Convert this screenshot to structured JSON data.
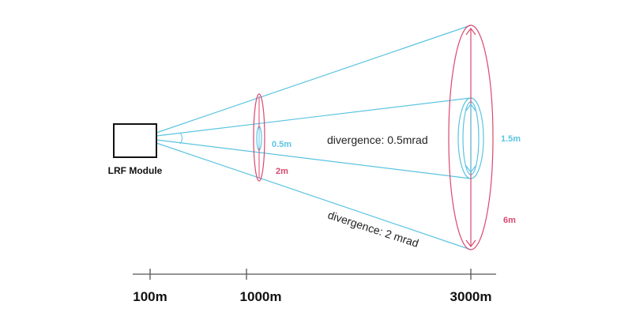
{
  "colors": {
    "narrow_beam": "#5bc4e0",
    "wide_beam": "#d9486f",
    "ink": "#111111"
  },
  "module": {
    "label": "LRF Module"
  },
  "beams": {
    "narrow": {
      "divergence_label": "divergence: 0.5mrad",
      "label_1000m": "0.5m",
      "label_3000m": "1.5m"
    },
    "wide": {
      "divergence_label": "divergence: 2 mrad",
      "label_1000m": "2m",
      "label_3000m": "6m"
    }
  },
  "axis": {
    "ticks": [
      "100m",
      "1000m",
      "3000m"
    ]
  }
}
